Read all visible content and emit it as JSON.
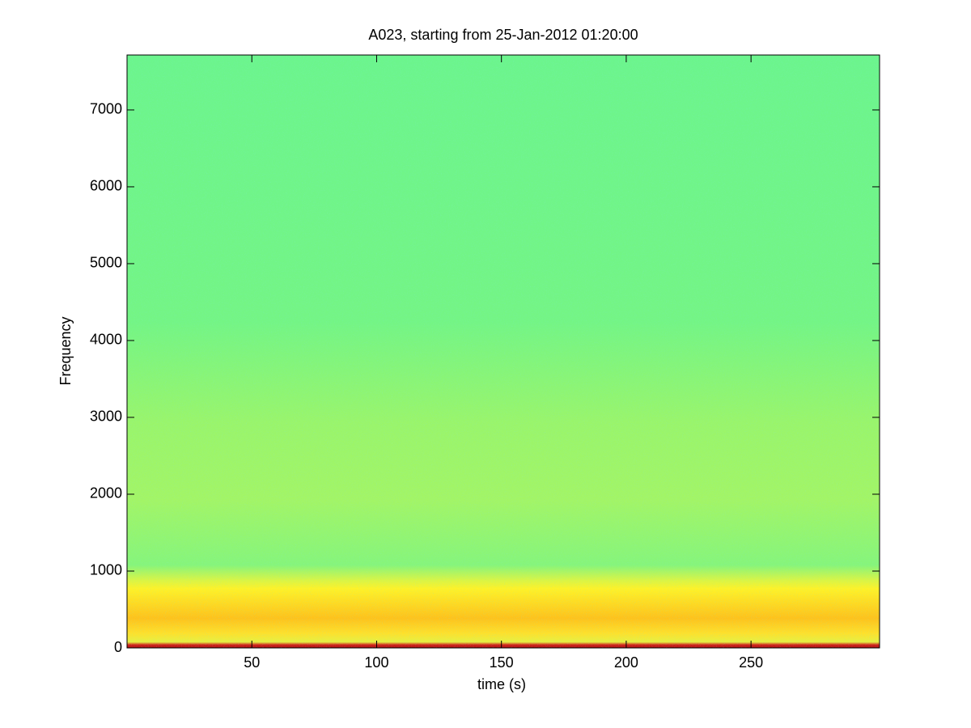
{
  "chart_data": {
    "type": "spectrogram",
    "title": "A023, starting from 25-Jan-2012 01:20:00",
    "xlabel": "time (s)",
    "ylabel": "Frequency",
    "xlim": [
      0,
      301.5
    ],
    "ylim": [
      0,
      7715
    ],
    "xticks": [
      50,
      100,
      150,
      200,
      250
    ],
    "yticks": [
      0,
      1000,
      2000,
      3000,
      4000,
      5000,
      6000,
      7000
    ]
  }
}
